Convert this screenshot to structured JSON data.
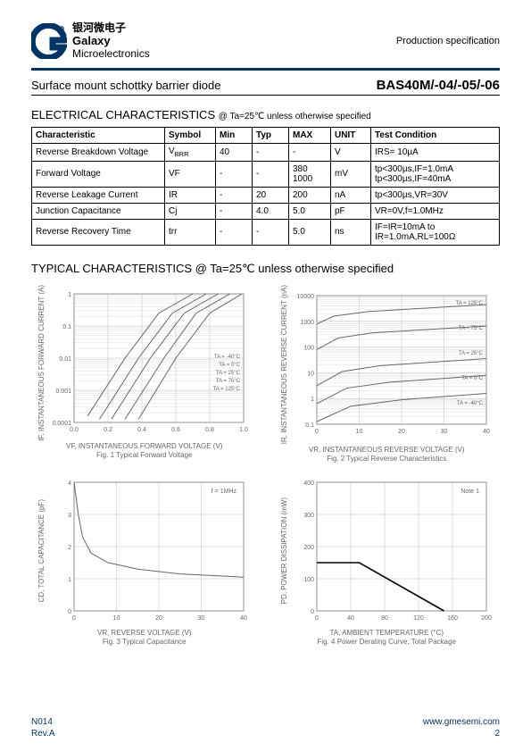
{
  "header": {
    "brand_cn": "银河微电子",
    "brand_en1": "Galaxy",
    "brand_en2": "Microelectronics",
    "spec_label": "Production specification",
    "logo_color": "#003366",
    "rule_color": "#003366"
  },
  "subheader": {
    "subtitle": "Surface mount schottky barrier diode",
    "part_number": "BAS40M/-04/-05/-06"
  },
  "elec_section": {
    "title": "ELECTRICAL CHARACTERISTICS",
    "condition": "@ Ta=25℃ unless otherwise specified",
    "headers": [
      "Characteristic",
      "Symbol",
      "Min",
      "Typ",
      "MAX",
      "UNIT",
      "Test Condition"
    ],
    "rows": [
      {
        "char": "Reverse Breakdown Voltage",
        "sym": "V(BR)R",
        "min": "40",
        "typ": "-",
        "max": "-",
        "unit": "V",
        "cond": "IRS= 10µA"
      },
      {
        "char": "Forward Voltage",
        "sym": "VF",
        "min": "-",
        "typ": "-",
        "max": "380\n1000",
        "unit": "mV",
        "cond": "tp<300µs,IF=1.0mA\ntp<300µs,IF=40mA"
      },
      {
        "char": "Reverse Leakage Current",
        "sym": "IR",
        "min": "-",
        "typ": "20",
        "max": "200",
        "unit": "nA",
        "cond": "tp<300µs,VR=30V"
      },
      {
        "char": "Junction Capacitance",
        "sym": "Cj",
        "min": "-",
        "typ": "4.0",
        "max": "5.0",
        "unit": "pF",
        "cond": "VR=0V,f=1.0MHz"
      },
      {
        "char": "Reverse Recovery Time",
        "sym": "trr",
        "min": "-",
        "typ": "-",
        "max": "5.0",
        "unit": "ns",
        "cond": "IF=IR=10mA to\nIR=1.0mA,RL=100Ω"
      }
    ]
  },
  "typ_section": {
    "title": "TYPICAL CHARACTERISTICS",
    "condition": "@ Ta=25℃ unless otherwise specified"
  },
  "charts": [
    {
      "id": 1,
      "type": "line-log",
      "xlabel": "VF, INSTANTANEOUS FORWARD VOLTAGE (V)",
      "ylabel": "IF, INSTANTANEOUS FORWARD CURRENT (A)",
      "caption": "Fig. 1 Typical Forward Voltage",
      "xlim": [
        0,
        1.0
      ],
      "xtick_step": 0.2,
      "ylim_log": [
        0.0001,
        1
      ],
      "line_color": "#666666",
      "grid_color": "#bbbbbb",
      "background_color": "#ffffff",
      "curve_labels": [
        "TA = -40°C",
        "TA = 0°C",
        "TA = 25°C",
        "TA = 75°C",
        "TA = 125°C"
      ],
      "curves": [
        [
          [
            0.08,
            -3.8
          ],
          [
            0.3,
            -2.0
          ],
          [
            0.5,
            -0.6
          ],
          [
            0.7,
            0.0
          ]
        ],
        [
          [
            0.15,
            -3.9
          ],
          [
            0.38,
            -2.0
          ],
          [
            0.58,
            -0.6
          ],
          [
            0.78,
            0.0
          ]
        ],
        [
          [
            0.22,
            -3.9
          ],
          [
            0.45,
            -2.0
          ],
          [
            0.65,
            -0.6
          ],
          [
            0.85,
            0.0
          ]
        ],
        [
          [
            0.3,
            -3.9
          ],
          [
            0.53,
            -2.0
          ],
          [
            0.72,
            -0.6
          ],
          [
            0.92,
            0.0
          ]
        ],
        [
          [
            0.38,
            -3.9
          ],
          [
            0.6,
            -2.0
          ],
          [
            0.8,
            -0.6
          ],
          [
            0.99,
            0.0
          ]
        ]
      ]
    },
    {
      "id": 2,
      "type": "line-log",
      "xlabel": "VR, INSTANTANEOUS REVERSE VOLTAGE (V)",
      "ylabel": "IR, INSTANTANEOUS REVERSE CURRENT (nA)",
      "caption": "Fig. 2 Typical Reverse Characteristics",
      "xlim": [
        0,
        40
      ],
      "xtick_step": 10,
      "ylim_log": [
        0.1,
        10000
      ],
      "line_color": "#666666",
      "grid_color": "#bbbbbb",
      "background_color": "#ffffff",
      "curve_labels": [
        "TA = 125°C",
        "TA = 75°C",
        "TA = 25°C",
        "TA = 0°C",
        "TA = -40°C"
      ],
      "curves": [
        [
          [
            0,
            2.9
          ],
          [
            4,
            3.2
          ],
          [
            12,
            3.38
          ],
          [
            40,
            3.65
          ]
        ],
        [
          [
            0,
            1.9
          ],
          [
            5,
            2.35
          ],
          [
            13,
            2.55
          ],
          [
            40,
            2.82
          ]
        ],
        [
          [
            0,
            0.5
          ],
          [
            6,
            1.05
          ],
          [
            15,
            1.28
          ],
          [
            40,
            1.55
          ]
        ],
        [
          [
            0,
            -0.2
          ],
          [
            7,
            0.4
          ],
          [
            17,
            0.63
          ],
          [
            40,
            0.9
          ]
        ],
        [
          [
            0,
            -0.9
          ],
          [
            8,
            -0.3
          ],
          [
            20,
            -0.05
          ],
          [
            40,
            0.2
          ]
        ]
      ]
    },
    {
      "id": 3,
      "type": "line",
      "xlabel": "VR, REVERSE VOLTAGE (V)",
      "ylabel": "CD, TOTAL CAPACITANCE (pF)",
      "caption": "Fig. 3 Typical Capacitance",
      "xlim": [
        0,
        40
      ],
      "xtick_step": 10,
      "ylim": [
        0,
        4
      ],
      "ytick_step": 1,
      "line_color": "#666666",
      "grid_color": "#bbbbbb",
      "background_color": "#ffffff",
      "note": "f = 1MHz",
      "curves": [
        [
          [
            0,
            4.0
          ],
          [
            1,
            3.0
          ],
          [
            2,
            2.3
          ],
          [
            4,
            1.8
          ],
          [
            8,
            1.5
          ],
          [
            15,
            1.3
          ],
          [
            25,
            1.15
          ],
          [
            40,
            1.05
          ]
        ]
      ]
    },
    {
      "id": 4,
      "type": "line",
      "xlabel": "TA, AMBIENT TEMPERATURE (°C)",
      "ylabel": "PD, POWER DISSIPATION (mW)",
      "caption": "Fig. 4 Power Derating Curve, Total Package",
      "xlim": [
        0,
        200
      ],
      "xtick_step": 40,
      "ylim": [
        0,
        400
      ],
      "ytick_step": 100,
      "line_color": "#000000",
      "grid_color": "#bbbbbb",
      "background_color": "#ffffff",
      "note": "Note 1",
      "curves": [
        [
          [
            0,
            150
          ],
          [
            50,
            150
          ],
          [
            150,
            0
          ]
        ]
      ]
    }
  ],
  "footer": {
    "doc": "N014",
    "rev": "Rev.A",
    "url": "www.gmesemi.com",
    "page": "2",
    "color": "#003366"
  }
}
